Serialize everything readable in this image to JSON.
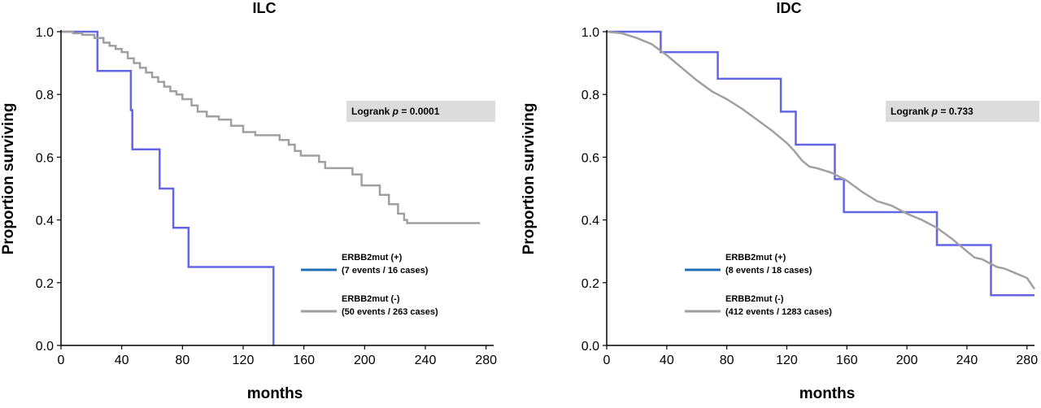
{
  "chart_data": [
    {
      "type": "line",
      "variant": "kaplan-meier",
      "title": "ILC",
      "xlabel": "months",
      "ylabel": "Proportion surviving",
      "xlim": [
        0,
        285
      ],
      "ylim": [
        0,
        1.0
      ],
      "xticks": [
        "0",
        "40",
        "80",
        "120",
        "160",
        "200",
        "240",
        "280"
      ],
      "yticks": [
        "0.0",
        "0.2",
        "0.4",
        "0.6",
        "0.8",
        "1.0"
      ],
      "grid": false,
      "annotation": {
        "prefix": "Logrank ",
        "italic": "p",
        "suffix": " = 0.0001"
      },
      "legend": {
        "placement": "bottom-right",
        "entries": [
          {
            "line1": "ERBB2mut (+)",
            "line2": "(7 events / 16 cases)",
            "color": "#1f6fb5"
          },
          {
            "line1": "ERBB2mut (-)",
            "line2": "(50 events / 263 cases)",
            "color": "#9e9e9e"
          }
        ]
      },
      "series": [
        {
          "name": "ERBB2mut (+)",
          "color": "#6464e6",
          "points": [
            [
              0,
              1.0
            ],
            [
              24,
              1.0
            ],
            [
              24,
              0.875
            ],
            [
              46,
              0.875
            ],
            [
              46,
              0.75
            ],
            [
              47,
              0.75
            ],
            [
              47,
              0.625
            ],
            [
              65,
              0.625
            ],
            [
              65,
              0.5
            ],
            [
              74,
              0.5
            ],
            [
              74,
              0.375
            ],
            [
              84,
              0.375
            ],
            [
              84,
              0.25
            ],
            [
              140,
              0.25
            ],
            [
              140,
              0.0
            ]
          ]
        },
        {
          "name": "ERBB2mut (-)",
          "color": "#a0a0a0",
          "points": [
            [
              0,
              1.0
            ],
            [
              8,
              1.0
            ],
            [
              8,
              0.995
            ],
            [
              14,
              0.995
            ],
            [
              14,
              0.99
            ],
            [
              22,
              0.99
            ],
            [
              22,
              0.98
            ],
            [
              28,
              0.98
            ],
            [
              28,
              0.965
            ],
            [
              32,
              0.965
            ],
            [
              32,
              0.955
            ],
            [
              36,
              0.955
            ],
            [
              36,
              0.945
            ],
            [
              40,
              0.945
            ],
            [
              40,
              0.935
            ],
            [
              44,
              0.935
            ],
            [
              44,
              0.915
            ],
            [
              48,
              0.915
            ],
            [
              48,
              0.9
            ],
            [
              52,
              0.9
            ],
            [
              52,
              0.885
            ],
            [
              56,
              0.885
            ],
            [
              56,
              0.87
            ],
            [
              60,
              0.87
            ],
            [
              60,
              0.855
            ],
            [
              64,
              0.855
            ],
            [
              64,
              0.84
            ],
            [
              68,
              0.84
            ],
            [
              68,
              0.825
            ],
            [
              72,
              0.825
            ],
            [
              72,
              0.81
            ],
            [
              76,
              0.81
            ],
            [
              76,
              0.8
            ],
            [
              80,
              0.8
            ],
            [
              80,
              0.785
            ],
            [
              86,
              0.785
            ],
            [
              86,
              0.765
            ],
            [
              90,
              0.765
            ],
            [
              90,
              0.745
            ],
            [
              96,
              0.745
            ],
            [
              96,
              0.73
            ],
            [
              104,
              0.73
            ],
            [
              104,
              0.72
            ],
            [
              112,
              0.72
            ],
            [
              112,
              0.7
            ],
            [
              120,
              0.7
            ],
            [
              120,
              0.68
            ],
            [
              128,
              0.68
            ],
            [
              128,
              0.67
            ],
            [
              144,
              0.67
            ],
            [
              144,
              0.655
            ],
            [
              150,
              0.655
            ],
            [
              150,
              0.64
            ],
            [
              154,
              0.64
            ],
            [
              154,
              0.62
            ],
            [
              158,
              0.62
            ],
            [
              158,
              0.605
            ],
            [
              170,
              0.605
            ],
            [
              170,
              0.585
            ],
            [
              174,
              0.585
            ],
            [
              174,
              0.565
            ],
            [
              192,
              0.565
            ],
            [
              192,
              0.545
            ],
            [
              198,
              0.545
            ],
            [
              198,
              0.51
            ],
            [
              210,
              0.51
            ],
            [
              210,
              0.48
            ],
            [
              216,
              0.48
            ],
            [
              216,
              0.45
            ],
            [
              222,
              0.45
            ],
            [
              222,
              0.42
            ],
            [
              226,
              0.42
            ],
            [
              226,
              0.4
            ],
            [
              228,
              0.4
            ],
            [
              228,
              0.39
            ],
            [
              276,
              0.39
            ]
          ]
        }
      ]
    },
    {
      "type": "line",
      "variant": "kaplan-meier",
      "title": "IDC",
      "xlabel": "months",
      "ylabel": "Proportion surviving",
      "xlim": [
        0,
        285
      ],
      "ylim": [
        0,
        1.0
      ],
      "xticks": [
        "0",
        "40",
        "80",
        "120",
        "160",
        "200",
        "240",
        "280"
      ],
      "yticks": [
        "0.0",
        "0.2",
        "0.4",
        "0.6",
        "0.8",
        "1.0"
      ],
      "grid": false,
      "annotation": {
        "prefix": "Logrank ",
        "italic": "p",
        "suffix": " = 0.733"
      },
      "legend": {
        "placement": "bottom-center",
        "entries": [
          {
            "line1": "ERBB2mut (+)",
            "line2": "(8 events / 18 cases)",
            "color": "#1f6fb5"
          },
          {
            "line1": "ERBB2mut (-)",
            "line2": "(412 events / 1283 cases)",
            "color": "#9e9e9e"
          }
        ]
      },
      "series": [
        {
          "name": "ERBB2mut (+)",
          "color": "#6464e6",
          "points": [
            [
              0,
              1.0
            ],
            [
              36,
              1.0
            ],
            [
              36,
              0.935
            ],
            [
              74,
              0.935
            ],
            [
              74,
              0.85
            ],
            [
              116,
              0.85
            ],
            [
              116,
              0.745
            ],
            [
              126,
              0.745
            ],
            [
              126,
              0.64
            ],
            [
              152,
              0.64
            ],
            [
              152,
              0.53
            ],
            [
              158,
              0.53
            ],
            [
              158,
              0.425
            ],
            [
              220,
              0.425
            ],
            [
              220,
              0.32
            ],
            [
              256,
              0.32
            ],
            [
              256,
              0.16
            ],
            [
              285,
              0.16
            ]
          ]
        },
        {
          "name": "ERBB2mut (-)",
          "color": "#a0a0a0",
          "points": [
            [
              0,
              1.0
            ],
            [
              10,
              0.995
            ],
            [
              20,
              0.98
            ],
            [
              30,
              0.96
            ],
            [
              40,
              0.925
            ],
            [
              50,
              0.885
            ],
            [
              60,
              0.845
            ],
            [
              70,
              0.81
            ],
            [
              80,
              0.785
            ],
            [
              90,
              0.755
            ],
            [
              100,
              0.72
            ],
            [
              110,
              0.685
            ],
            [
              120,
              0.645
            ],
            [
              125,
              0.62
            ],
            [
              130,
              0.59
            ],
            [
              135,
              0.57
            ],
            [
              140,
              0.565
            ],
            [
              150,
              0.55
            ],
            [
              160,
              0.525
            ],
            [
              170,
              0.49
            ],
            [
              180,
              0.46
            ],
            [
              190,
              0.445
            ],
            [
              200,
              0.42
            ],
            [
              210,
              0.4
            ],
            [
              220,
              0.375
            ],
            [
              230,
              0.34
            ],
            [
              240,
              0.3
            ],
            [
              245,
              0.28
            ],
            [
              250,
              0.275
            ],
            [
              260,
              0.25
            ],
            [
              265,
              0.245
            ],
            [
              270,
              0.235
            ],
            [
              275,
              0.225
            ],
            [
              280,
              0.215
            ],
            [
              285,
              0.18
            ]
          ]
        }
      ]
    }
  ]
}
